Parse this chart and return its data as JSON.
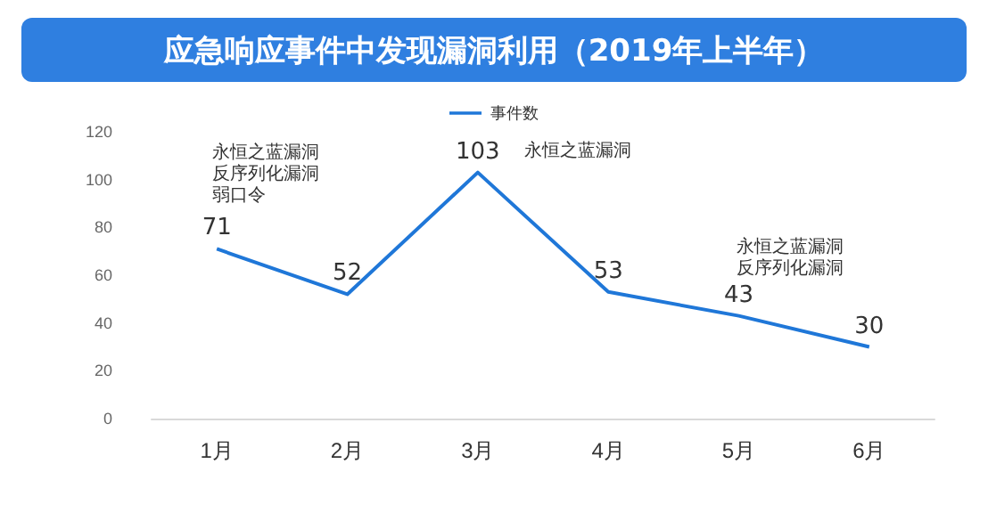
{
  "chart_data": {
    "type": "line",
    "title": "应急响应事件中发现漏洞利用（2019年上半年）",
    "categories": [
      "1月",
      "2月",
      "3月",
      "4月",
      "5月",
      "6月"
    ],
    "series": [
      {
        "name": "事件数",
        "color": "#1f77d8",
        "values": [
          71,
          52,
          103,
          53,
          43,
          30
        ]
      }
    ],
    "ylim": [
      0,
      120
    ],
    "yticks": [
      0,
      20,
      40,
      60,
      80,
      100,
      120
    ],
    "grid": false,
    "legend": "top",
    "data_labels": true,
    "marker": "none",
    "line_style": "solid",
    "annotations": [
      "永恒之蓝漏洞",
      "反序列化漏洞",
      "弱口令",
      "永恒之蓝漏洞",
      "永恒之蓝漏洞",
      "反序列化漏洞"
    ]
  }
}
